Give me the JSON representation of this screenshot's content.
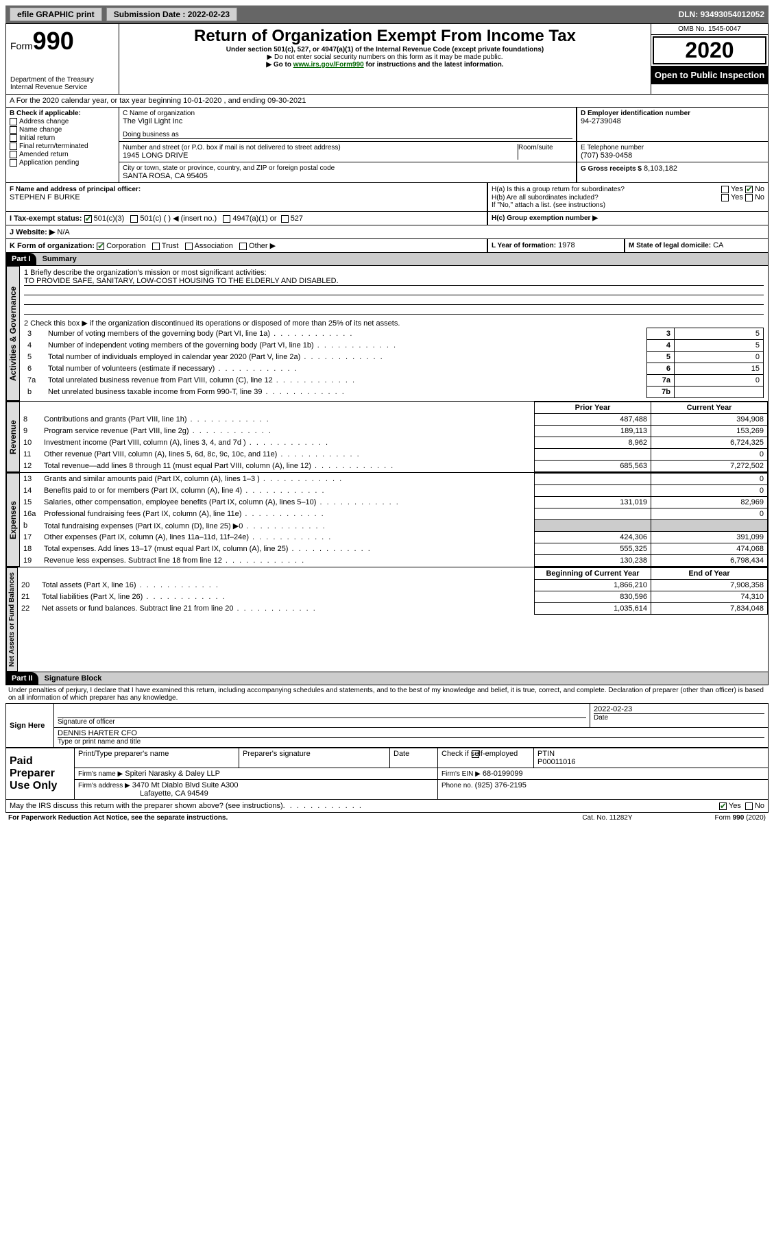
{
  "topbar": {
    "efile": "efile GRAPHIC print",
    "submission_label": "Submission Date : 2022-02-23",
    "dln": "DLN: 93493054012052"
  },
  "header": {
    "form_label": "Form",
    "form_num": "990",
    "title": "Return of Organization Exempt From Income Tax",
    "subtitle": "Under section 501(c), 527, or 4947(a)(1) of the Internal Revenue Code (except private foundations)",
    "note1": "▶ Do not enter social security numbers on this form as it may be made public.",
    "note2_pre": "▶ Go to ",
    "note2_link": "www.irs.gov/Form990",
    "note2_post": " for instructions and the latest information.",
    "dept": "Department of the Treasury\nInternal Revenue Service",
    "omb": "OMB No. 1545-0047",
    "year": "2020",
    "open": "Open to Public Inspection"
  },
  "a_line": "A For the 2020 calendar year, or tax year beginning 10-01-2020    , and ending 09-30-2021",
  "b": {
    "label": "B Check if applicable:",
    "items": [
      "Address change",
      "Name change",
      "Initial return",
      "Final return/terminated",
      "Amended return",
      "Application pending"
    ]
  },
  "c": {
    "label": "C Name of organization",
    "name": "The Vigil Light Inc",
    "dba_label": "Doing business as",
    "addr_label": "Number and street (or P.O. box if mail is not delivered to street address)",
    "room_label": "Room/suite",
    "addr": "1945 LONG DRIVE",
    "city_label": "City or town, state or province, country, and ZIP or foreign postal code",
    "city": "SANTA ROSA, CA  95405"
  },
  "d": {
    "label": "D Employer identification number",
    "val": "94-2739048"
  },
  "e": {
    "label": "E Telephone number",
    "val": "(707) 539-0458"
  },
  "g": {
    "label": "G Gross receipts $",
    "val": "8,103,182"
  },
  "f": {
    "label": "F Name and address of principal officer:",
    "val": "STEPHEN F BURKE"
  },
  "h": {
    "ha": "H(a)  Is this a group return for subordinates?",
    "hb": "H(b)  Are all subordinates included?",
    "hb_note": "If \"No,\" attach a list. (see instructions)",
    "hc": "H(c)  Group exemption number ▶"
  },
  "i": {
    "label": "I    Tax-exempt status:",
    "opts": [
      "501(c)(3)",
      "501(c) (  ) ◀ (insert no.)",
      "4947(a)(1) or",
      "527"
    ]
  },
  "j": {
    "label": "J    Website: ▶",
    "val": "N/A"
  },
  "k": {
    "label": "K Form of organization:",
    "opts": [
      "Corporation",
      "Trust",
      "Association",
      "Other ▶"
    ]
  },
  "l": {
    "label": "L Year of formation:",
    "val": "1978"
  },
  "m": {
    "label": "M State of legal domicile:",
    "val": "CA"
  },
  "p1": {
    "title": "Summary",
    "side": "Activities & Governance",
    "l1_label": "1   Briefly describe the organization's mission or most significant activities:",
    "l1_val": "TO PROVIDE SAFE, SANITARY, LOW-COST HOUSING TO THE ELDERLY AND DISABLED.",
    "l2": "2   Check this box ▶        if the organization discontinued its operations or disposed of more than 25% of its net assets.",
    "rows_gov": [
      {
        "n": "3",
        "t": "Number of voting members of the governing body (Part VI, line 1a)",
        "box": "3",
        "v": "5"
      },
      {
        "n": "4",
        "t": "Number of independent voting members of the governing body (Part VI, line 1b)",
        "box": "4",
        "v": "5"
      },
      {
        "n": "5",
        "t": "Total number of individuals employed in calendar year 2020 (Part V, line 2a)",
        "box": "5",
        "v": "0"
      },
      {
        "n": "6",
        "t": "Total number of volunteers (estimate if necessary)",
        "box": "6",
        "v": "15"
      },
      {
        "n": "7a",
        "t": "Total unrelated business revenue from Part VIII, column (C), line 12",
        "box": "7a",
        "v": "0"
      },
      {
        "n": "b",
        "t": "Net unrelated business taxable income from Form 990-T, line 39",
        "box": "7b",
        "v": ""
      }
    ],
    "col_prior": "Prior Year",
    "col_curr": "Current Year",
    "side_rev": "Revenue",
    "rows_rev": [
      {
        "n": "8",
        "t": "Contributions and grants (Part VIII, line 1h)",
        "p": "487,488",
        "c": "394,908"
      },
      {
        "n": "9",
        "t": "Program service revenue (Part VIII, line 2g)",
        "p": "189,113",
        "c": "153,269"
      },
      {
        "n": "10",
        "t": "Investment income (Part VIII, column (A), lines 3, 4, and 7d )",
        "p": "8,962",
        "c": "6,724,325"
      },
      {
        "n": "11",
        "t": "Other revenue (Part VIII, column (A), lines 5, 6d, 8c, 9c, 10c, and 11e)",
        "p": "",
        "c": "0"
      },
      {
        "n": "12",
        "t": "Total revenue—add lines 8 through 11 (must equal Part VIII, column (A), line 12)",
        "p": "685,563",
        "c": "7,272,502"
      }
    ],
    "side_exp": "Expenses",
    "rows_exp": [
      {
        "n": "13",
        "t": "Grants and similar amounts paid (Part IX, column (A), lines 1–3 )",
        "p": "",
        "c": "0"
      },
      {
        "n": "14",
        "t": "Benefits paid to or for members (Part IX, column (A), line 4)",
        "p": "",
        "c": "0"
      },
      {
        "n": "15",
        "t": "Salaries, other compensation, employee benefits (Part IX, column (A), lines 5–10)",
        "p": "131,019",
        "c": "82,969"
      },
      {
        "n": "16a",
        "t": "Professional fundraising fees (Part IX, column (A), line 11e)",
        "p": "",
        "c": "0"
      },
      {
        "n": "b",
        "t": "Total fundraising expenses (Part IX, column (D), line 25) ▶0",
        "p": "GRAY",
        "c": "GRAY"
      },
      {
        "n": "17",
        "t": "Other expenses (Part IX, column (A), lines 11a–11d, 11f–24e)",
        "p": "424,306",
        "c": "391,099"
      },
      {
        "n": "18",
        "t": "Total expenses. Add lines 13–17 (must equal Part IX, column (A), line 25)",
        "p": "555,325",
        "c": "474,068"
      },
      {
        "n": "19",
        "t": "Revenue less expenses. Subtract line 18 from line 12",
        "p": "130,238",
        "c": "6,798,434"
      }
    ],
    "col_beg": "Beginning of Current Year",
    "col_end": "End of Year",
    "side_net": "Net Assets or Fund Balances",
    "rows_net": [
      {
        "n": "20",
        "t": "Total assets (Part X, line 16)",
        "p": "1,866,210",
        "c": "7,908,358"
      },
      {
        "n": "21",
        "t": "Total liabilities (Part X, line 26)",
        "p": "830,596",
        "c": "74,310"
      },
      {
        "n": "22",
        "t": "Net assets or fund balances. Subtract line 21 from line 20",
        "p": "1,035,614",
        "c": "7,834,048"
      }
    ]
  },
  "p2": {
    "title": "Signature Block",
    "decl": "Under penalties of perjury, I declare that I have examined this return, including accompanying schedules and statements, and to the best of my knowledge and belief, it is true, correct, and complete. Declaration of preparer (other than officer) is based on all information of which preparer has any knowledge.",
    "sign_here": "Sign Here",
    "sig_officer": "Signature of officer",
    "date_label": "Date",
    "date_val": "2022-02-23",
    "name_title": "DENNIS HARTER  CFO",
    "name_title_label": "Type or print name and title",
    "paid": "Paid Preparer Use Only",
    "prep_name_label": "Print/Type preparer's name",
    "prep_sig_label": "Preparer's signature",
    "check_self": "Check        if self-employed",
    "ptin_label": "PTIN",
    "ptin": "P00011016",
    "firm_name_label": "Firm's name      ▶",
    "firm_name": "Spiteri Narasky & Daley LLP",
    "firm_ein_label": "Firm's EIN ▶",
    "firm_ein": "68-0199099",
    "firm_addr_label": "Firm's address ▶",
    "firm_addr1": "3470 Mt Diablo Blvd Suite A300",
    "firm_addr2": "Lafayette, CA  94549",
    "phone_label": "Phone no.",
    "phone": "(925) 376-2195",
    "discuss": "May the IRS discuss this return with the preparer shown above? (see instructions)",
    "pra": "For Paperwork Reduction Act Notice, see the separate instructions.",
    "cat": "Cat. No. 11282Y",
    "form_foot": "Form 990 (2020)"
  }
}
